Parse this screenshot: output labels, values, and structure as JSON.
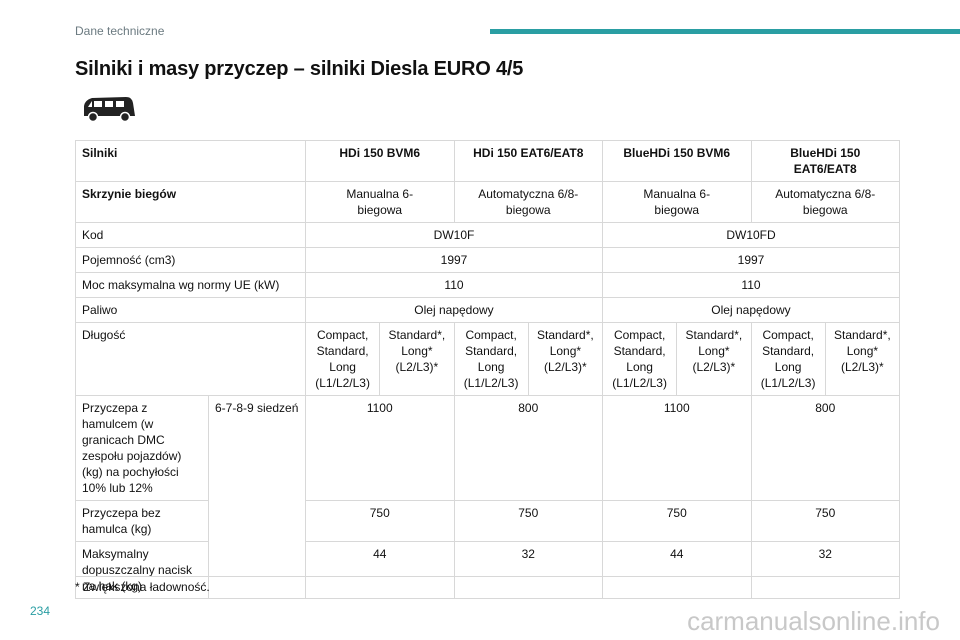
{
  "header": {
    "section": "Dane techniczne",
    "page_number": 234
  },
  "title": "Silniki i masy przyczep – silniki Diesla EURO 4/5",
  "table": {
    "columns": [
      "Silniki",
      "HDi 150 BVM6",
      "HDi 150 EAT6/EAT8",
      "BlueHDi 150 BVM6",
      "BlueHDi 150 EAT6/EAT8"
    ],
    "rows": [
      {
        "label": "Skrzynie biegów",
        "cells": [
          "Manualna 6-biegowa",
          "Automatyczna 6/8-biegowa",
          "Manualna 6-biegowa",
          "Automatyczna 6/8-biegowa"
        ]
      },
      {
        "label": "Kod",
        "cells": [
          "DW10F",
          "DW10FD"
        ]
      },
      {
        "label": "Pojemność (cm3)",
        "cells": [
          1997,
          1997
        ]
      },
      {
        "label": "Moc maksymalna wg normy UE (kW)",
        "cells": [
          110,
          110
        ]
      },
      {
        "label": "Paliwo",
        "cells": [
          "Olej napędowy",
          "Olej napędowy"
        ]
      },
      {
        "label": "Długość",
        "cells": [
          "Compact, Standard, Long (L1/L2/L3)",
          "Standard*, Long* (L2/L3)*",
          "Compact, Standard, Long (L1/L2/L3)",
          "Standard*, Long* (L2/L3)*",
          "Compact, Standard, Long (L1/L2/L3)",
          "Standard*, Long* (L2/L3)*",
          "Compact, Standard, Long (L1/L2/L3)",
          "Standard*, Long* (L2/L3)*"
        ]
      }
    ],
    "trailer": {
      "seats": "6-7-8-9 siedzeń",
      "rows": [
        {
          "label": "Przyczepa z hamulcem (w granicach DMC zespołu pojazdów) (kg) na pochyłości 10% lub 12%",
          "cells": [
            1100,
            800,
            1100,
            800
          ]
        },
        {
          "label": "Przyczepa bez hamulca (kg)",
          "cells": [
            750,
            750,
            750,
            750
          ]
        },
        {
          "label": "Maksymalny dopuszczalny nacisk na hak (kg)",
          "cells": [
            44,
            32,
            44,
            32
          ]
        }
      ]
    }
  },
  "footnote": "*  Zwiększona ładowność.",
  "watermark": "carmanualsonline.info"
}
